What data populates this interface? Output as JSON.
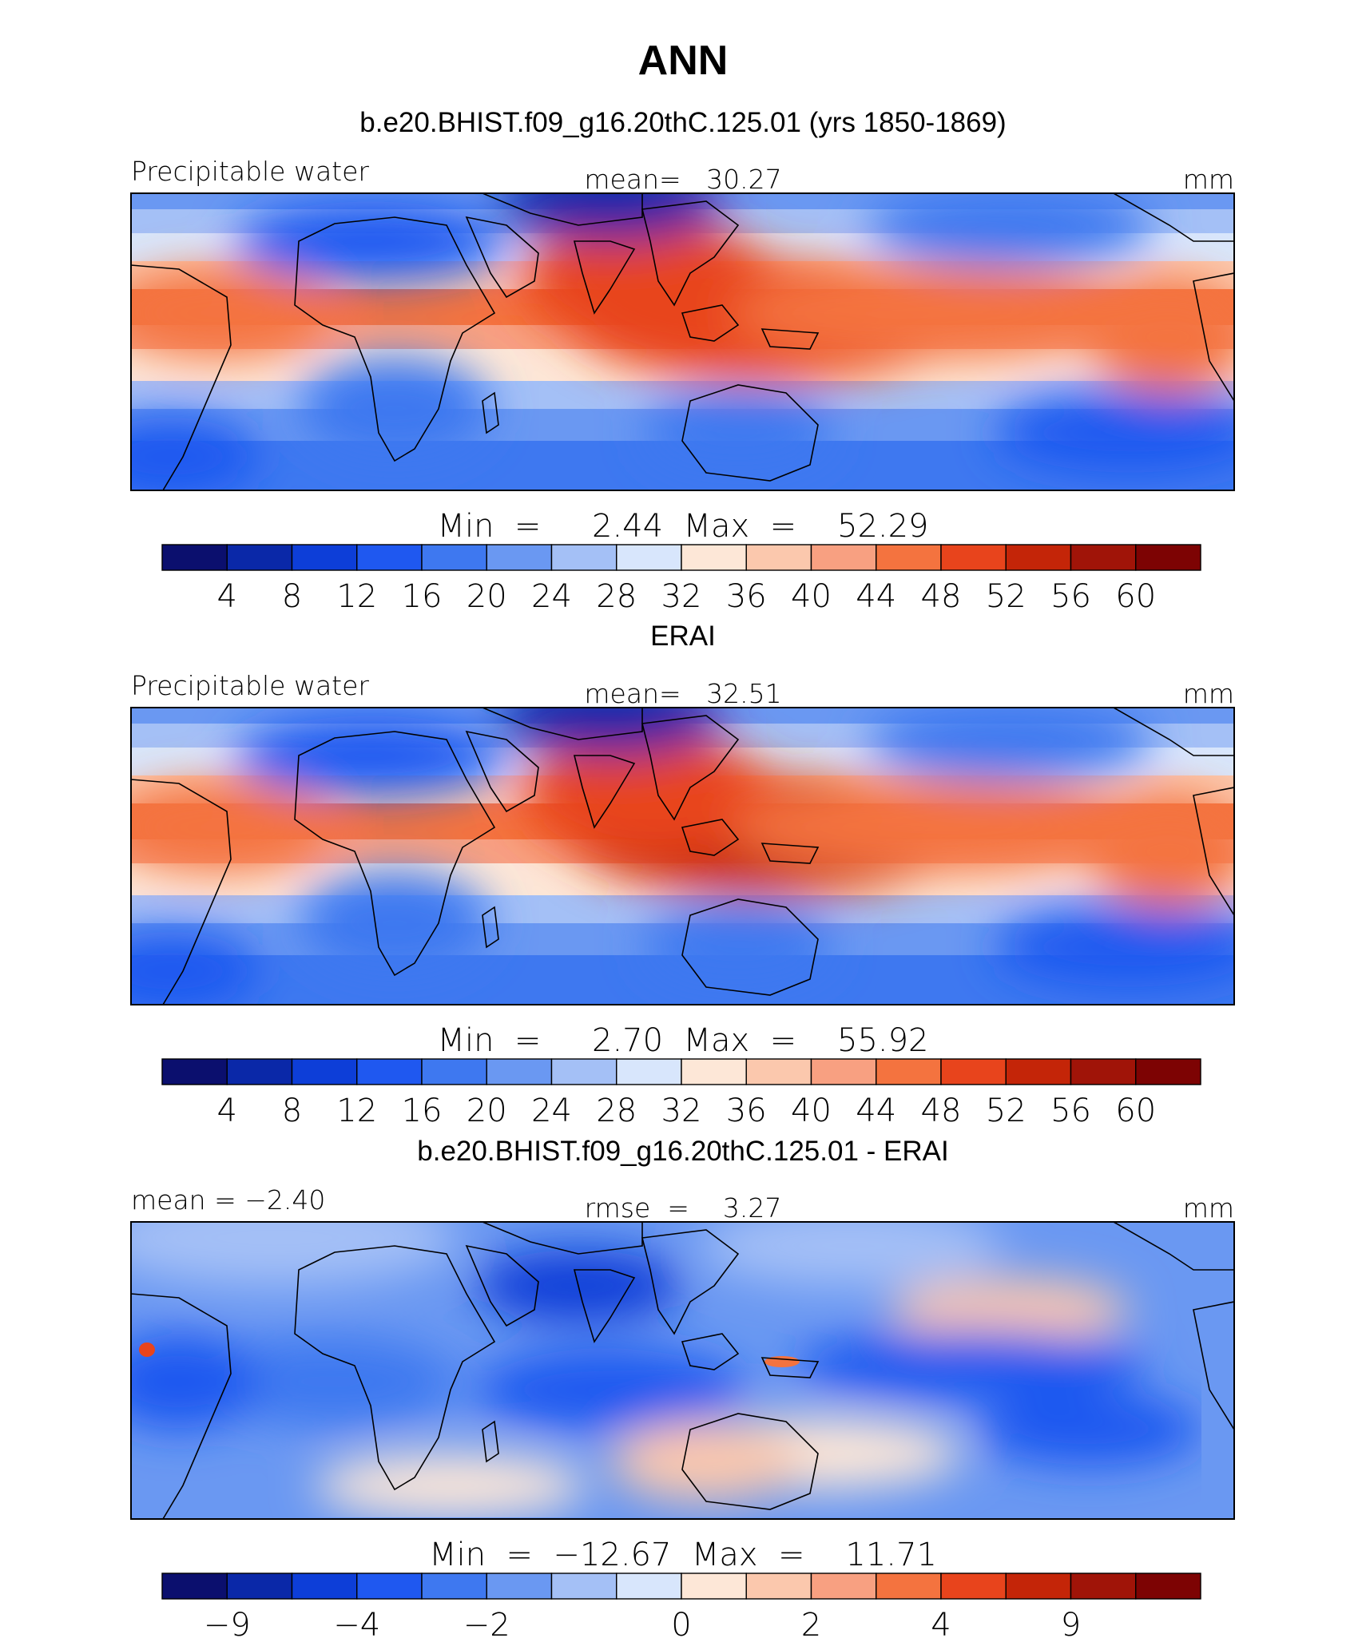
{
  "title": "ANN",
  "panels": [
    {
      "id": "model",
      "title": "b.e20.BHIST.f09_g16.20thC.125.01 (yrs 1850-1869)",
      "left_label": "Precipitable water",
      "center_label": "mean=   30.27",
      "units": "mm",
      "minmax": "Min  =     2.44  Max  =    52.29",
      "colorbar_ticks": [
        "4",
        "8",
        "12",
        "16",
        "20",
        "24",
        "28",
        "32",
        "36",
        "40",
        "44",
        "48",
        "52",
        "56",
        "60"
      ],
      "mean": 30.27,
      "min": 2.44,
      "max": 52.29,
      "kind": "model"
    },
    {
      "id": "obs",
      "title": "ERAI",
      "left_label": "Precipitable water",
      "center_label": "mean=   32.51",
      "units": "mm",
      "minmax": "Min  =     2.70  Max  =    55.92",
      "colorbar_ticks": [
        "4",
        "8",
        "12",
        "16",
        "20",
        "24",
        "28",
        "32",
        "36",
        "40",
        "44",
        "48",
        "52",
        "56",
        "60"
      ],
      "mean": 32.51,
      "min": 2.7,
      "max": 55.92,
      "kind": "obs"
    },
    {
      "id": "diff",
      "title": "b.e20.BHIST.f09_g16.20thC.125.01 - ERAI",
      "left_label": "mean  =   −2.40",
      "center_label": "rmse  =    3.27",
      "units": "mm",
      "minmax": "Min  =  −12.67  Max  =    11.71",
      "colorbar_ticks": [
        "−9",
        "−4",
        "−2",
        "0",
        "2",
        "4",
        "9"
      ],
      "mean": -2.4,
      "rmse": 3.27,
      "min": -12.67,
      "max": 11.71,
      "kind": "diff"
    }
  ],
  "colormap": [
    "#0b0f6e",
    "#0a28a8",
    "#0d3ed8",
    "#1f58f0",
    "#3e78f0",
    "#6a98f2",
    "#a4c0f6",
    "#d8e6fc",
    "#fde7d7",
    "#fbc8ad",
    "#f8a081",
    "#f4733f",
    "#e8441c",
    "#c42508",
    "#a01408",
    "#7d0303"
  ]
}
